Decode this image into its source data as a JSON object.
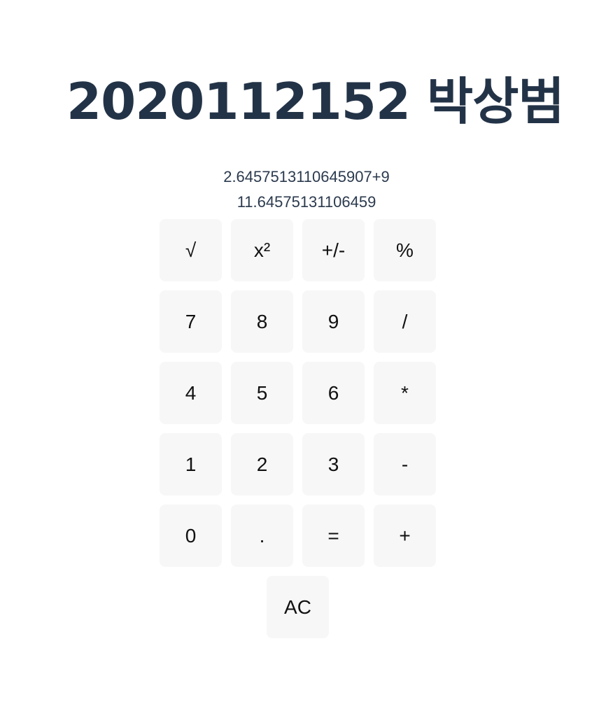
{
  "header": {
    "title": "2020112152 박상범"
  },
  "display": {
    "expression": "2.6457513110645907+9",
    "result": "11.64575131106459"
  },
  "keypad": {
    "sqrt": "√",
    "square": "x²",
    "negate": "+/-",
    "percent": "%",
    "seven": "7",
    "eight": "8",
    "nine": "9",
    "divide": "/",
    "four": "4",
    "five": "5",
    "six": "6",
    "multiply": "*",
    "one": "1",
    "two": "2",
    "three": "3",
    "subtract": "-",
    "zero": "0",
    "decimal": ".",
    "equals": "=",
    "add": "+",
    "clear": "AC"
  }
}
